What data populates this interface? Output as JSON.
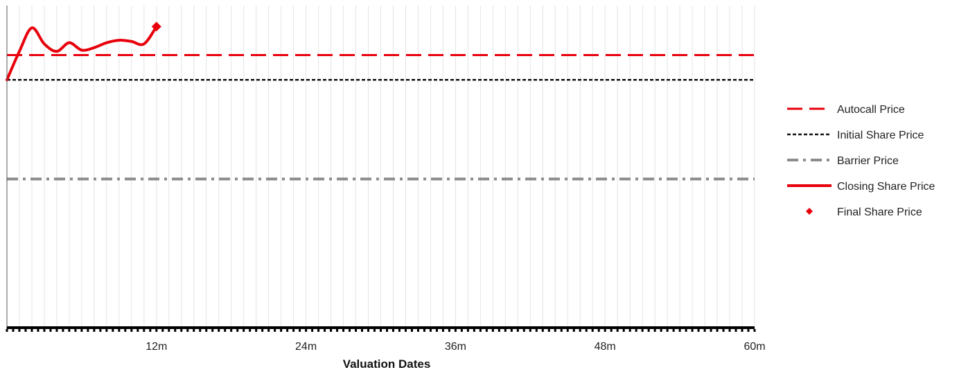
{
  "chart_data": {
    "type": "line",
    "xlabel": "Valuation Dates",
    "x_ticks": [
      {
        "value": 12,
        "label": "12m"
      },
      {
        "value": 24,
        "label": "24m"
      },
      {
        "value": 36,
        "label": "36m"
      },
      {
        "value": 48,
        "label": "48m"
      },
      {
        "value": 60,
        "label": "60m"
      }
    ],
    "xlim": [
      0,
      60
    ],
    "ylim": [
      0,
      130
    ],
    "grid": true,
    "legend_position": "right",
    "series": [
      {
        "name": "Autocall Price",
        "kind": "hline",
        "y": 110,
        "color": "#e8000b",
        "style": "dashed"
      },
      {
        "name": "Initial Share Price",
        "kind": "hline",
        "y": 100,
        "color": "#111111",
        "style": "dotted"
      },
      {
        "name": "Barrier Price",
        "kind": "hline",
        "y": 60,
        "color": "#8c8c8c",
        "style": "dashdot"
      },
      {
        "name": "Closing Share Price",
        "kind": "line",
        "color": "#e8000b",
        "x": [
          0,
          1,
          2,
          3,
          4,
          5,
          6,
          7,
          8,
          9,
          10,
          11,
          12
        ],
        "y": [
          100,
          111.5,
          121,
          114.5,
          111.5,
          115,
          112,
          113,
          115,
          116,
          115.5,
          114.5,
          121.5
        ]
      },
      {
        "name": "Final Share Price",
        "kind": "marker",
        "color": "#e8000b",
        "x": 12,
        "y": 121.5
      }
    ]
  }
}
